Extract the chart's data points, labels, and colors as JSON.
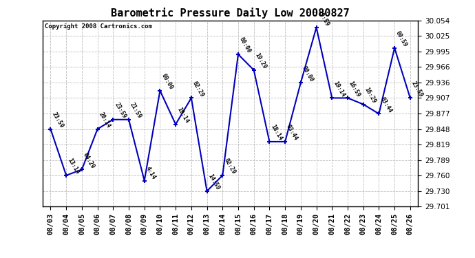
{
  "title": "Barometric Pressure Daily Low 20080827",
  "copyright": "Copyright 2008 Cartronics.com",
  "x_labels": [
    "08/03",
    "08/04",
    "08/05",
    "08/06",
    "08/07",
    "08/08",
    "08/09",
    "08/10",
    "08/11",
    "08/12",
    "08/13",
    "08/14",
    "08/15",
    "08/16",
    "08/17",
    "08/18",
    "08/19",
    "08/20",
    "08/21",
    "08/22",
    "08/23",
    "08/24",
    "08/25",
    "08/26"
  ],
  "y_values": [
    29.848,
    29.76,
    29.771,
    29.848,
    29.866,
    29.866,
    29.75,
    29.921,
    29.857,
    29.907,
    29.73,
    29.76,
    29.99,
    29.96,
    29.824,
    29.824,
    29.936,
    30.041,
    29.907,
    29.907,
    29.895,
    29.877,
    30.002,
    29.907
  ],
  "point_labels": [
    "23:59",
    "13:14",
    "04:29",
    "20:14",
    "23:59",
    "21:59",
    "4:14",
    "00:00",
    "19:14",
    "02:29",
    "14:59",
    "02:29",
    "00:00",
    "19:29",
    "18:14",
    "03:44",
    "00:00",
    "19:59",
    "19:14",
    "16:59",
    "16:29",
    "03:44",
    "00:59",
    "23:59"
  ],
  "ylim_min": 29.701,
  "ylim_max": 30.054,
  "yticks": [
    29.701,
    29.73,
    29.76,
    29.789,
    29.819,
    29.848,
    29.877,
    29.907,
    29.936,
    29.966,
    29.995,
    30.025,
    30.054
  ],
  "line_color": "#0000bb",
  "marker_color": "#0000bb",
  "bg_color": "#ffffff",
  "grid_color": "#bbbbbb",
  "title_fontsize": 11,
  "tick_fontsize": 7.5,
  "point_label_fontsize": 6,
  "copyright_fontsize": 6.5
}
